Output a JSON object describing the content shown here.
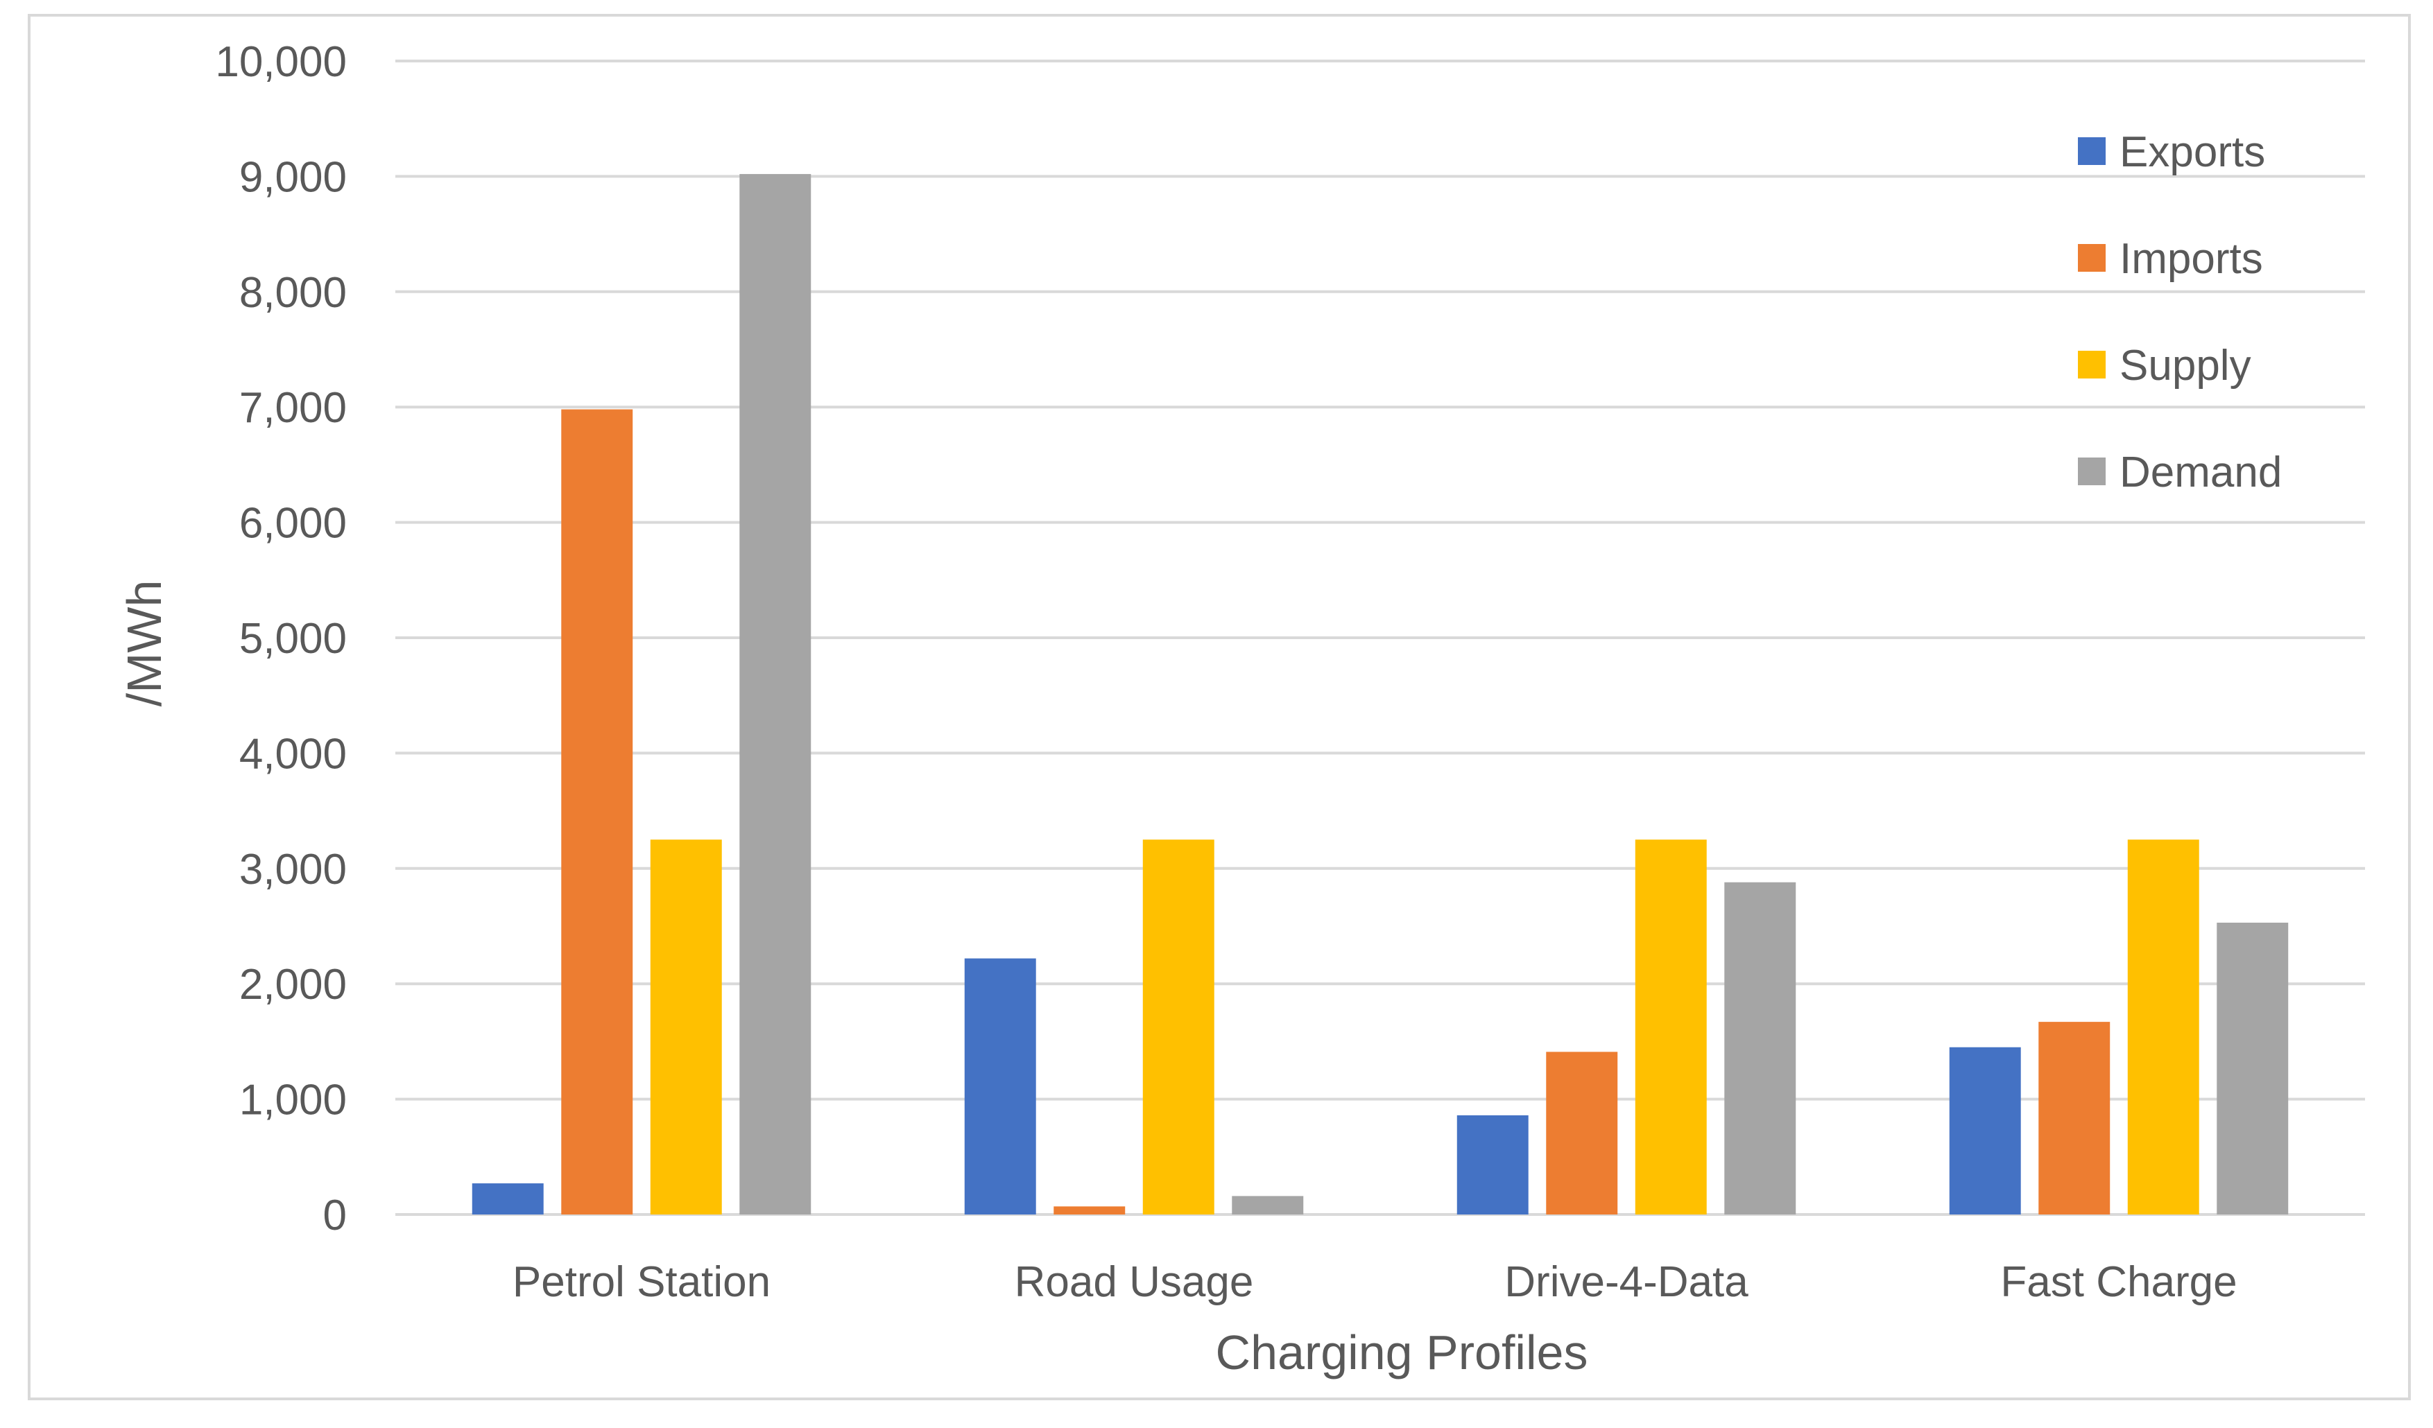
{
  "chart_data": {
    "type": "bar",
    "title": "",
    "xlabel": "Charging Profiles",
    "ylabel": "/MWh",
    "categories": [
      "Petrol Station",
      "Road Usage",
      "Drive-4-Data",
      "Fast Charge"
    ],
    "series": [
      {
        "name": "Exports",
        "color": "#4472c4",
        "values": [
          270,
          2220,
          860,
          1450
        ]
      },
      {
        "name": "Imports",
        "color": "#ed7d31",
        "values": [
          6980,
          70,
          1410,
          1670
        ]
      },
      {
        "name": "Supply",
        "color": "#ffc000",
        "values": [
          3250,
          3250,
          3250,
          3250
        ]
      },
      {
        "name": "Demand",
        "color": "#a5a5a5",
        "values": [
          9020,
          160,
          2880,
          2530
        ]
      }
    ],
    "ylim": [
      0,
      10000
    ],
    "yticks": [
      0,
      1000,
      2000,
      3000,
      4000,
      5000,
      6000,
      7000,
      8000,
      9000,
      10000
    ],
    "ytick_labels": [
      "0",
      "1,000",
      "2,000",
      "3,000",
      "4,000",
      "5,000",
      "6,000",
      "7,000",
      "8,000",
      "9,000",
      "10,000"
    ],
    "grid": true,
    "legend_position": "top-right"
  }
}
